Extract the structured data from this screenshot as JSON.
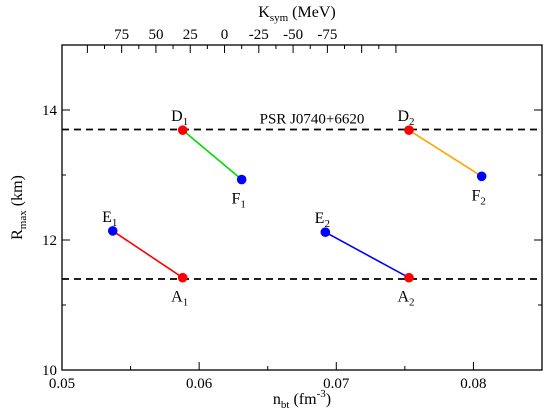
{
  "chart_data": {
    "type": "scatter",
    "title": "",
    "xlabel": "n_bt (fm^-3)",
    "xlabel_parts": {
      "main": "n",
      "sub": "bt",
      "unit_open": " (fm",
      "sup": "-3",
      "unit_close": ")"
    },
    "ylabel": "R_max (km)",
    "ylabel_parts": {
      "main": "R",
      "sub": "max",
      "unit": " (km)"
    },
    "top_xlabel": "K_sym (MeV)",
    "top_xlabel_parts": {
      "main": "K",
      "sub": "sym",
      "unit": " (MeV)"
    },
    "xlim": [
      0.05,
      0.085
    ],
    "ylim": [
      10,
      15
    ],
    "x_ticks": [
      0.05,
      0.06,
      0.07,
      0.08
    ],
    "x_tick_labels": [
      "0.05",
      "0.06",
      "0.07",
      "0.08"
    ],
    "y_ticks": [
      10,
      12,
      14
    ],
    "y_tick_labels": [
      "10",
      "12",
      "14"
    ],
    "top_ticks": [
      75,
      50,
      25,
      0,
      -25,
      -50,
      -75
    ],
    "top_tick_labels": [
      "75",
      "50",
      "25",
      "0",
      "-25",
      "-50",
      "-75"
    ],
    "top_axis_map": {
      "k_at_xmin": 118.5,
      "k_per_x": -10000
    },
    "grid": false,
    "hlines": [
      {
        "y": 13.7,
        "style": "dashed",
        "color": "#000000",
        "label": "PSR J0740+6620"
      },
      {
        "y": 11.4,
        "style": "dashed",
        "color": "#000000",
        "label": ""
      }
    ],
    "points": [
      {
        "name": "A",
        "sub": "1",
        "x": 0.0588,
        "y": 11.42,
        "color": "#ff0000",
        "label_pos": "below"
      },
      {
        "name": "E",
        "sub": "1",
        "x": 0.0537,
        "y": 12.14,
        "color": "#0000ff",
        "label_pos": "above"
      },
      {
        "name": "D",
        "sub": "1",
        "x": 0.0588,
        "y": 13.69,
        "color": "#ff0000",
        "label_pos": "above"
      },
      {
        "name": "F",
        "sub": "1",
        "x": 0.0631,
        "y": 12.93,
        "color": "#0000ff",
        "label_pos": "below"
      },
      {
        "name": "A",
        "sub": "2",
        "x": 0.0753,
        "y": 11.42,
        "color": "#ff0000",
        "label_pos": "below"
      },
      {
        "name": "E",
        "sub": "2",
        "x": 0.0692,
        "y": 12.12,
        "color": "#0000ff",
        "label_pos": "above"
      },
      {
        "name": "D",
        "sub": "2",
        "x": 0.0753,
        "y": 13.69,
        "color": "#ff0000",
        "label_pos": "above"
      },
      {
        "name": "F",
        "sub": "2",
        "x": 0.0806,
        "y": 12.98,
        "color": "#0000ff",
        "label_pos": "below"
      }
    ],
    "segments": [
      {
        "from": [
          0.0537,
          12.14
        ],
        "to": [
          0.0588,
          11.42
        ],
        "color": "#ff0000"
      },
      {
        "from": [
          0.0588,
          13.69
        ],
        "to": [
          0.0631,
          12.93
        ],
        "color": "#00dd00"
      },
      {
        "from": [
          0.0692,
          12.12
        ],
        "to": [
          0.0753,
          11.42
        ],
        "color": "#0000ff"
      },
      {
        "from": [
          0.0753,
          13.69
        ],
        "to": [
          0.0806,
          12.98
        ],
        "color": "#ffa500"
      }
    ]
  }
}
